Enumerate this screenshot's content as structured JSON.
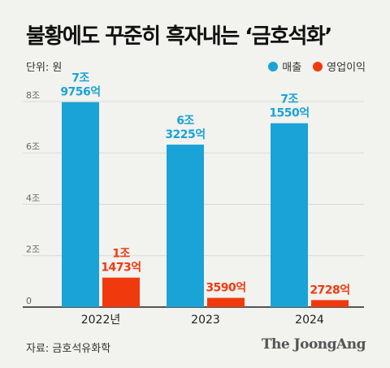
{
  "title": "불황에도 꾸준히 흑자내는 ‘금호석화’",
  "unit": "단위: 원",
  "source": "자료: 금호석유화학",
  "brand": "The JoongAng",
  "colors": {
    "sales": "#1aa3d6",
    "profit": "#f03a0e",
    "axis": "#222222",
    "tick": "#666666",
    "grid": "#d9d9d6"
  },
  "chart_data": {
    "type": "bar",
    "categories": [
      "2022년",
      "2023",
      "2024"
    ],
    "series": [
      {
        "name": "매출",
        "values": [
          7.9756,
          6.3225,
          7.155
        ],
        "labels": [
          [
            "7조",
            "9756억"
          ],
          [
            "6조",
            "3225억"
          ],
          [
            "7조",
            "1550억"
          ]
        ]
      },
      {
        "name": "영업이익",
        "values": [
          1.1473,
          0.359,
          0.2728
        ],
        "labels": [
          [
            "1조",
            "1473억"
          ],
          [
            "3590억"
          ],
          [
            "2728억"
          ]
        ]
      }
    ],
    "yticks": [
      {
        "value": 0,
        "label": "0"
      },
      {
        "value": 2,
        "label": "2조"
      },
      {
        "value": 4,
        "label": "4조"
      },
      {
        "value": 6,
        "label": "6조"
      },
      {
        "value": 8,
        "label": "8조"
      }
    ],
    "ylim": [
      0,
      8.6
    ],
    "legend_position": "top-right",
    "grid": true
  }
}
